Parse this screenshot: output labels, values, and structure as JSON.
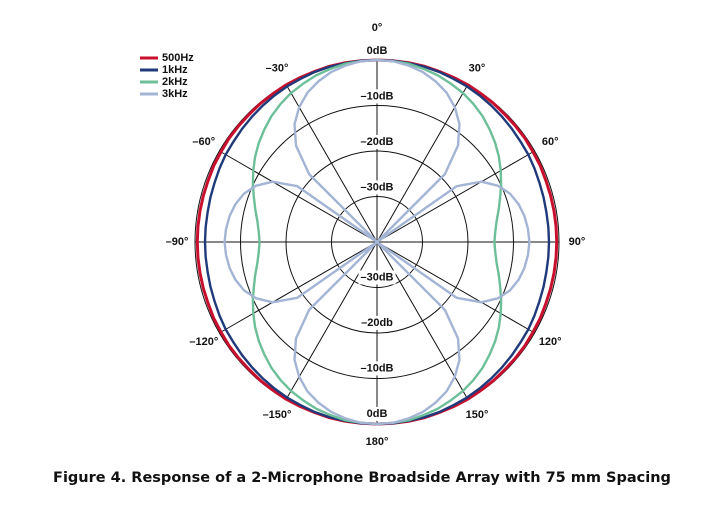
{
  "chart_data": {
    "type": "polar",
    "caption": "Figure 4. Response of a 2-Microphone Broadside Array with 75 mm Spacing",
    "rlim": [
      -40,
      0
    ],
    "rticks": [
      {
        "value": 0,
        "label": "0dB"
      },
      {
        "value": -10,
        "label": "–10dB"
      },
      {
        "value": -20,
        "label": "–20dB"
      },
      {
        "value": -30,
        "label": "–30dB"
      }
    ],
    "rticks_lower": [
      {
        "value": 0,
        "label": "0dB"
      },
      {
        "value": -10,
        "label": "–10dB"
      },
      {
        "value": -20,
        "label": "–20db"
      },
      {
        "value": -30,
        "label": "–30dB"
      }
    ],
    "theta_ticks": [
      {
        "value": 0,
        "label": "0°"
      },
      {
        "value": 30,
        "label": "30°"
      },
      {
        "value": 60,
        "label": "60°"
      },
      {
        "value": 90,
        "label": "90°"
      },
      {
        "value": 120,
        "label": "120°"
      },
      {
        "value": 150,
        "label": "150°"
      },
      {
        "value": 180,
        "label": "180°"
      },
      {
        "value": -150,
        "label": "–150°"
      },
      {
        "value": -120,
        "label": "–120°"
      },
      {
        "value": -90,
        "label": "–90°"
      },
      {
        "value": -60,
        "label": "–60°"
      },
      {
        "value": -30,
        "label": "–30°"
      }
    ],
    "theta": [
      0,
      5,
      10,
      15,
      20,
      25,
      30,
      35,
      40,
      45,
      50,
      55,
      60,
      65,
      70,
      75,
      80,
      85,
      90,
      95,
      100,
      105,
      110,
      115,
      120,
      125,
      130,
      135,
      140,
      145,
      150,
      155,
      160,
      165,
      170,
      175,
      180,
      185,
      190,
      195,
      200,
      205,
      210,
      215,
      220,
      225,
      230,
      235,
      240,
      245,
      250,
      255,
      260,
      265,
      270,
      275,
      280,
      285,
      290,
      295,
      300,
      305,
      310,
      315,
      320,
      325,
      330,
      335,
      340,
      345,
      350,
      355
    ],
    "legend": "top-left",
    "series": [
      {
        "name": "500Hz",
        "color": "#c8102e",
        "values": [
          0,
          0,
          0,
          0,
          -0.1,
          -0.1,
          -0.1,
          -0.2,
          -0.2,
          -0.3,
          -0.3,
          -0.3,
          -0.4,
          -0.4,
          -0.5,
          -0.5,
          -0.5,
          -0.5,
          -0.5,
          -0.5,
          -0.5,
          -0.5,
          -0.5,
          -0.4,
          -0.4,
          -0.3,
          -0.3,
          -0.3,
          -0.2,
          -0.2,
          -0.1,
          -0.1,
          -0.1,
          0,
          0,
          0,
          0,
          0,
          0,
          0,
          -0.1,
          -0.1,
          -0.1,
          -0.2,
          -0.2,
          -0.3,
          -0.3,
          -0.3,
          -0.4,
          -0.4,
          -0.5,
          -0.5,
          -0.5,
          -0.5,
          -0.5,
          -0.5,
          -0.5,
          -0.5,
          -0.5,
          -0.4,
          -0.4,
          -0.3,
          -0.3,
          -0.3,
          -0.2,
          -0.2,
          -0.1,
          -0.1,
          -0.1,
          0,
          0,
          0
        ]
      },
      {
        "name": "1kHz",
        "color": "#1f3a7a",
        "values": [
          0,
          0,
          -0.1,
          -0.1,
          -0.2,
          -0.4,
          -0.5,
          -0.7,
          -0.9,
          -1.1,
          -1.3,
          -1.5,
          -1.6,
          -1.8,
          -2.0,
          -2.1,
          -2.2,
          -2.2,
          -2.2,
          -2.2,
          -2.2,
          -2.1,
          -2.0,
          -1.8,
          -1.6,
          -1.5,
          -1.3,
          -1.1,
          -0.9,
          -0.7,
          -0.5,
          -0.4,
          -0.2,
          -0.1,
          -0.1,
          0,
          0,
          0,
          -0.1,
          -0.1,
          -0.2,
          -0.4,
          -0.5,
          -0.7,
          -0.9,
          -1.1,
          -1.3,
          -1.5,
          -1.6,
          -1.8,
          -2.0,
          -2.1,
          -2.2,
          -2.2,
          -2.2,
          -2.2,
          -2.2,
          -2.1,
          -2.0,
          -1.8,
          -1.6,
          -1.5,
          -1.3,
          -1.1,
          -0.9,
          -0.7,
          -0.5,
          -0.4,
          -0.2,
          -0.1,
          -0.1,
          0
        ]
      },
      {
        "name": "2kHz",
        "color": "#6cbf98",
        "values": [
          0,
          -0.1,
          -0.2,
          -0.6,
          -1.0,
          -1.6,
          -2.2,
          -3.0,
          -3.9,
          -5.0,
          -6.1,
          -7.3,
          -8.6,
          -9.9,
          -11.2,
          -12.3,
          -13.3,
          -13.9,
          -14.2,
          -13.9,
          -13.3,
          -12.3,
          -11.2,
          -9.9,
          -8.6,
          -7.3,
          -6.1,
          -5.0,
          -3.9,
          -3.0,
          -2.2,
          -1.6,
          -1.0,
          -0.6,
          -0.2,
          -0.1,
          0,
          -0.1,
          -0.2,
          -0.6,
          -1.0,
          -1.6,
          -2.2,
          -3.0,
          -3.9,
          -5.0,
          -6.1,
          -7.3,
          -8.6,
          -9.9,
          -11.2,
          -12.3,
          -13.3,
          -13.9,
          -14.2,
          -13.9,
          -13.3,
          -12.3,
          -11.2,
          -9.9,
          -8.6,
          -7.3,
          -6.1,
          -5.0,
          -3.9,
          -3.0,
          -2.2,
          -1.6,
          -1.0,
          -0.6,
          -0.2,
          -0.1
        ]
      },
      {
        "name": "3kHz",
        "color": "#a3b4d4",
        "values": [
          0,
          -0.1,
          -0.6,
          -1.3,
          -2.4,
          -3.8,
          -5.8,
          -8.4,
          -12.3,
          -18.9,
          -40,
          -18.6,
          -13.5,
          -10.7,
          -8.9,
          -7.8,
          -7.1,
          -6.7,
          -6.5,
          -6.7,
          -7.1,
          -7.8,
          -8.9,
          -10.7,
          -13.5,
          -18.6,
          -40,
          -18.9,
          -12.3,
          -8.4,
          -5.8,
          -3.8,
          -2.4,
          -1.3,
          -0.6,
          -0.1,
          0,
          -0.1,
          -0.6,
          -1.3,
          -2.4,
          -3.8,
          -5.8,
          -8.4,
          -12.3,
          -18.9,
          -40,
          -18.6,
          -13.5,
          -10.7,
          -8.9,
          -7.8,
          -7.1,
          -6.7,
          -6.5,
          -6.7,
          -7.1,
          -7.8,
          -8.9,
          -10.7,
          -13.5,
          -18.6,
          -40,
          -18.9,
          -12.3,
          -8.4,
          -5.8,
          -3.8,
          -2.4,
          -1.3,
          -0.6,
          -0.1
        ]
      }
    ]
  }
}
